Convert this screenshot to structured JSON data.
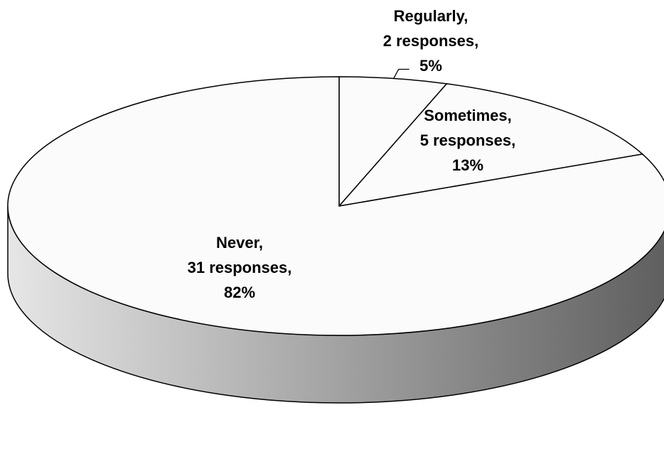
{
  "chart_data": {
    "type": "pie",
    "style": "3d",
    "slices": [
      {
        "category": "Regularly",
        "responses": 2,
        "percent": 5,
        "label_lines": [
          "Regularly,",
          "2 responses,",
          "5%"
        ]
      },
      {
        "category": "Sometimes",
        "responses": 5,
        "percent": 13,
        "label_lines": [
          "Sometimes,",
          "5 responses,",
          "13%"
        ]
      },
      {
        "category": "Never",
        "responses": 31,
        "percent": 82,
        "label_lines": [
          "Never,",
          "31 responses,",
          "82%"
        ]
      }
    ],
    "colors": {
      "slice_fill": "#fbfbfb",
      "outline": "#000000",
      "side_light": "#e6e6e6",
      "side_dark": "#5e5e5e"
    }
  }
}
